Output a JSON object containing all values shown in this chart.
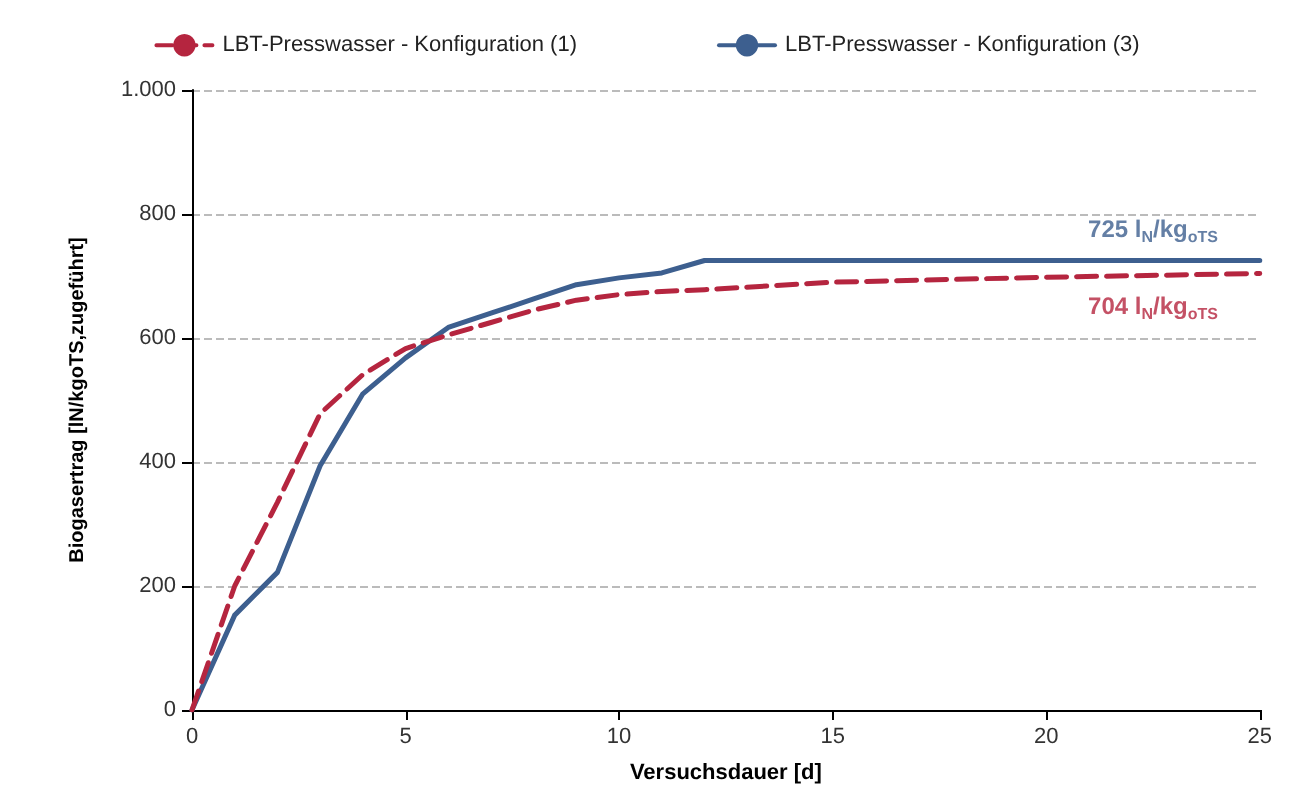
{
  "chart_data": {
    "type": "line",
    "xlabel": "Versuchsdauer [d]",
    "ylabel": "Biogasertrag [lN/kgoTS,zugeführt]",
    "xlim": [
      0,
      25
    ],
    "xticks": [
      0,
      5,
      10,
      15,
      20,
      25
    ],
    "ylim": [
      0,
      1000
    ],
    "yticks": [
      0,
      200,
      400,
      600,
      800,
      {
        "value": 1000,
        "label": "1.000"
      }
    ],
    "grid": "y",
    "legend": "top",
    "marker": "none",
    "series": [
      {
        "name": "LBT-Presswasser - Konfiguration (1)",
        "color": "#b5253f",
        "line_style": "dashed",
        "x": [
          0,
          1,
          2,
          3,
          4,
          5,
          6,
          7,
          8,
          9,
          10,
          11,
          12,
          15,
          20,
          25
        ],
        "values": [
          0,
          200,
          335,
          478,
          541,
          583,
          605,
          625,
          645,
          661,
          670,
          675,
          678,
          690,
          698,
          704
        ]
      },
      {
        "name": "LBT-Presswasser - Konfiguration (3)",
        "color": "#3d5f8f",
        "line_style": "solid",
        "x": [
          0,
          1,
          2,
          3,
          4,
          5,
          6,
          7,
          8,
          9,
          10,
          11,
          12,
          25
        ],
        "values": [
          0,
          153,
          222,
          394,
          510,
          568,
          617,
          640,
          663,
          686,
          697,
          705,
          725,
          725
        ]
      }
    ],
    "annotations": [
      {
        "text": "725 l$_{N}$/kg$_{oTS}$",
        "x": 22.5,
        "y": 725
      },
      {
        "text": "704 l$_{N}$/kg$_{oTS}$",
        "x": 22.5,
        "y": 704
      }
    ]
  }
}
